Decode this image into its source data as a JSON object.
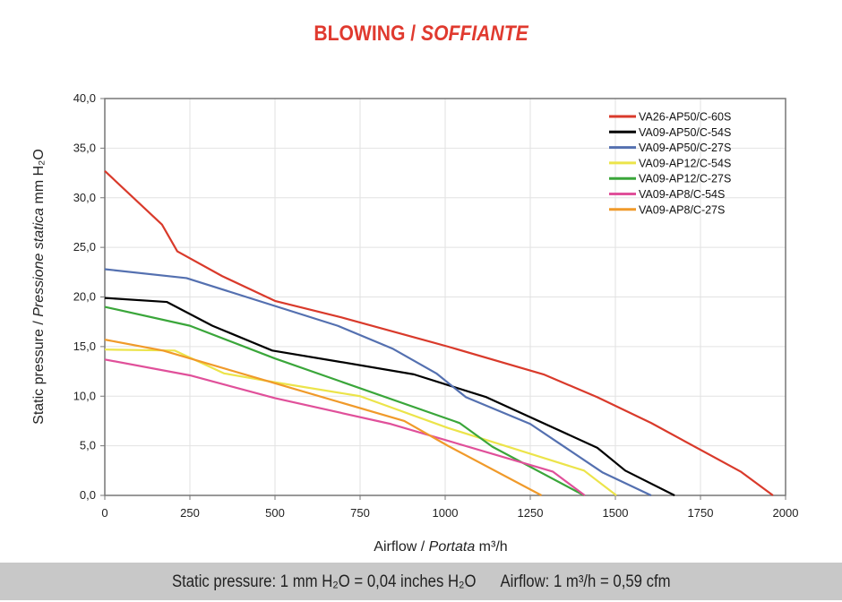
{
  "chart_data": {
    "type": "line",
    "title": "BLOWING",
    "title_italic": "SOFFIANTE",
    "xlabel": "Airflow",
    "xlabel_italic": "Portata",
    "xlabel_unit": "m³/h",
    "ylabel": "Static pressure",
    "ylabel_italic": "Pressione statica",
    "ylabel_unit": "mm H₂O",
    "xlim": [
      0,
      2000
    ],
    "ylim": [
      0,
      40
    ],
    "xticks": [
      "0",
      "250",
      "500",
      "750",
      "1000",
      "1250",
      "1500",
      "1750",
      "2000"
    ],
    "yticks": [
      "0,0",
      "5,0",
      "10,0",
      "15,0",
      "20,0",
      "25,0",
      "30,0",
      "35,0",
      "40,0"
    ],
    "grid": true,
    "legend": "top-right",
    "series": [
      {
        "name": "VA26-AP50/C-60S",
        "color": "#d93a2b",
        "points": [
          [
            0,
            32.7
          ],
          [
            168,
            27.3
          ],
          [
            213,
            24.6
          ],
          [
            345,
            22.1
          ],
          [
            500,
            19.6
          ],
          [
            700,
            17.9
          ],
          [
            1008,
            15.0
          ],
          [
            1289,
            12.2
          ],
          [
            1447,
            9.9
          ],
          [
            1605,
            7.3
          ],
          [
            1868,
            2.4
          ],
          [
            1963,
            0
          ]
        ]
      },
      {
        "name": "VA09-AP50/C-54S",
        "color": "#000000",
        "points": [
          [
            0,
            19.9
          ],
          [
            182,
            19.5
          ],
          [
            316,
            17.1
          ],
          [
            492,
            14.6
          ],
          [
            684,
            13.5
          ],
          [
            908,
            12.2
          ],
          [
            1121,
            9.9
          ],
          [
            1447,
            4.8
          ],
          [
            1529,
            2.5
          ],
          [
            1674,
            0
          ]
        ]
      },
      {
        "name": "VA09-AP50/C-27S",
        "color": "#5470b0",
        "points": [
          [
            0,
            22.8
          ],
          [
            240,
            21.9
          ],
          [
            684,
            17.1
          ],
          [
            845,
            14.8
          ],
          [
            974,
            12.3
          ],
          [
            1061,
            9.9
          ],
          [
            1250,
            7.2
          ],
          [
            1463,
            2.3
          ],
          [
            1605,
            0
          ]
        ]
      },
      {
        "name": "VA09-AP12/C-54S",
        "color": "#ece44a",
        "points": [
          [
            0,
            14.7
          ],
          [
            205,
            14.6
          ],
          [
            350,
            12.3
          ],
          [
            500,
            11.4
          ],
          [
            750,
            10.0
          ],
          [
            1008,
            6.8
          ],
          [
            1408,
            2.5
          ],
          [
            1503,
            0
          ]
        ]
      },
      {
        "name": "VA09-AP12/C-27S",
        "color": "#3aa63a",
        "points": [
          [
            0,
            19.0
          ],
          [
            250,
            17.1
          ],
          [
            500,
            13.8
          ],
          [
            1042,
            7.3
          ],
          [
            1139,
            4.9
          ],
          [
            1408,
            0
          ]
        ]
      },
      {
        "name": "VA09-AP8/C-54S",
        "color": "#e0509a",
        "points": [
          [
            0,
            13.7
          ],
          [
            250,
            12.1
          ],
          [
            500,
            9.8
          ],
          [
            840,
            7.2
          ],
          [
            1316,
            2.4
          ],
          [
            1410,
            0
          ]
        ]
      },
      {
        "name": "VA09-AP8/C-27S",
        "color": "#f09a2a",
        "points": [
          [
            0,
            15.7
          ],
          [
            171,
            14.6
          ],
          [
            500,
            11.3
          ],
          [
            880,
            7.5
          ],
          [
            1008,
            5.0
          ],
          [
            1283,
            0
          ]
        ]
      }
    ]
  },
  "footer": "Static pressure: 1 mm H₂O = 0,04 inches H₂O      Airflow: 1 m³/h = 0,59 cfm"
}
